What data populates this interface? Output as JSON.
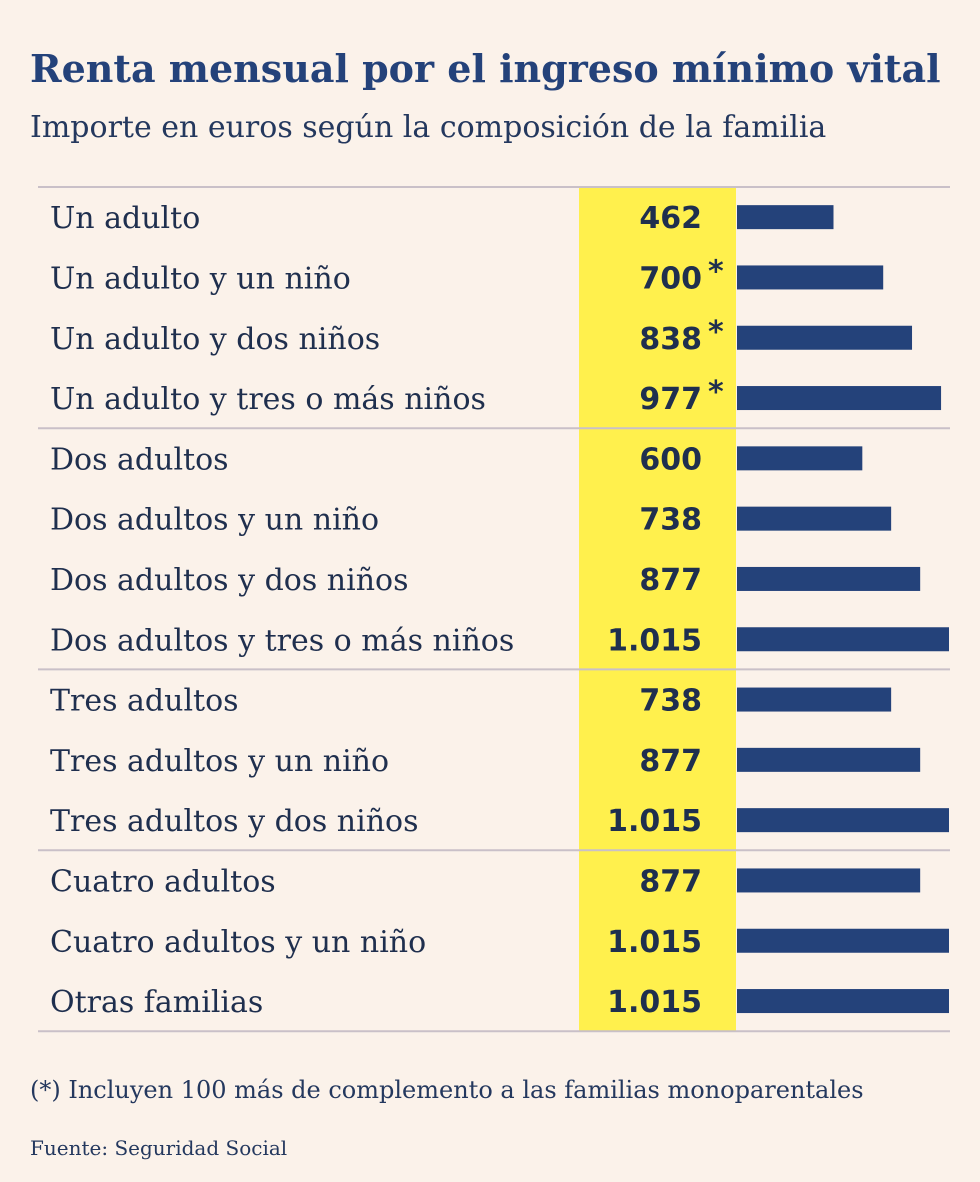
{
  "title": "Renta mensual por el ingreso mínimo vital",
  "subtitle": "Importe en euros según la composición de la familia",
  "colors": {
    "highlight": "#fff04d",
    "bar": "#24427a",
    "divider": "#c9c0c8"
  },
  "chart_data": {
    "type": "bar",
    "orientation": "horizontal",
    "categories": [
      "Un adulto",
      "Un adulto y un niño",
      "Un adulto y dos niños",
      "Un adulto y tres o más niños",
      "Dos adultos",
      "Dos adultos y un niño",
      "Dos adultos y dos niños",
      "Dos adultos y tres o más niños",
      "Tres adultos",
      "Tres adultos y un niño",
      "Tres adultos y dos niños",
      "Cuatro adultos",
      "Cuatro adultos y un niño",
      "Otras familias"
    ],
    "values": [
      462,
      700,
      838,
      977,
      600,
      738,
      877,
      1015,
      738,
      877,
      1015,
      877,
      1015,
      1015
    ],
    "value_labels": [
      "462",
      "700",
      "838",
      "977",
      "600",
      "738",
      "877",
      "1.015",
      "738",
      "877",
      "1.015",
      "877",
      "1.015",
      "1.015"
    ],
    "markers": [
      "",
      "*",
      "*",
      "*",
      "",
      "",
      "",
      "",
      "",
      "",
      "",
      "",
      "",
      ""
    ],
    "groups_end_after_index": [
      3,
      7,
      10
    ],
    "xlim": [
      0,
      1015
    ],
    "grid": false,
    "legend": "none"
  },
  "footnote": "(*) Incluyen 100 más de complemento a las familias monoparentales",
  "source": "Fuente: Seguridad Social"
}
